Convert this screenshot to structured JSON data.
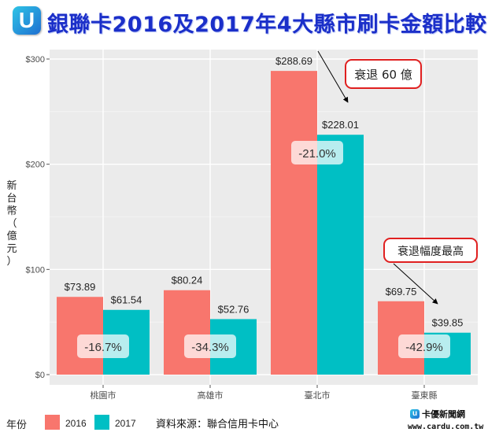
{
  "header": {
    "logo_text": "U",
    "title": "銀聯卡2016及2017年4大縣市刷卡金額比較"
  },
  "footer": {
    "source": "資料來源：聯合信用卡中心",
    "brand": "卡優新聞網",
    "site": "www.cardu.com.tw"
  },
  "colors": {
    "series_2016": "#F8766D",
    "series_2017": "#00BFC4",
    "panel": "#EBEBEB",
    "callout_border": "#E02020"
  },
  "callouts": [
    {
      "text": "衰退 60 億",
      "points_to": "臺北市"
    },
    {
      "text": "衰退幅度最高",
      "points_to": "臺東縣"
    }
  ],
  "chart_data": {
    "type": "bar",
    "title": "銀聯卡2016及2017年4大縣市刷卡金額比較",
    "categories": [
      "桃園市",
      "高雄市",
      "臺北市",
      "臺東縣"
    ],
    "series": [
      {
        "name": "2016",
        "values": [
          73.89,
          80.24,
          288.69,
          69.75
        ]
      },
      {
        "name": "2017",
        "values": [
          61.54,
          52.76,
          228.01,
          39.85
        ]
      }
    ],
    "value_labels": {
      "2016": [
        "$73.89",
        "$80.24",
        "$288.69",
        "$69.75"
      ],
      "2017": [
        "$61.54",
        "$52.76",
        "$228.01",
        "$39.85"
      ]
    },
    "change_labels": [
      "-16.7%",
      "-34.3%",
      "-21.0%",
      "-42.9%"
    ],
    "ylabel": "新台幣（億元）",
    "xlabel": "",
    "ylim": [
      0,
      300
    ],
    "yticks": [
      0,
      100,
      200,
      300
    ],
    "ytick_labels": [
      "$0",
      "$100",
      "$200",
      "$300"
    ],
    "legend": {
      "title": "年份",
      "position": "bottom-left"
    },
    "grid": true
  }
}
